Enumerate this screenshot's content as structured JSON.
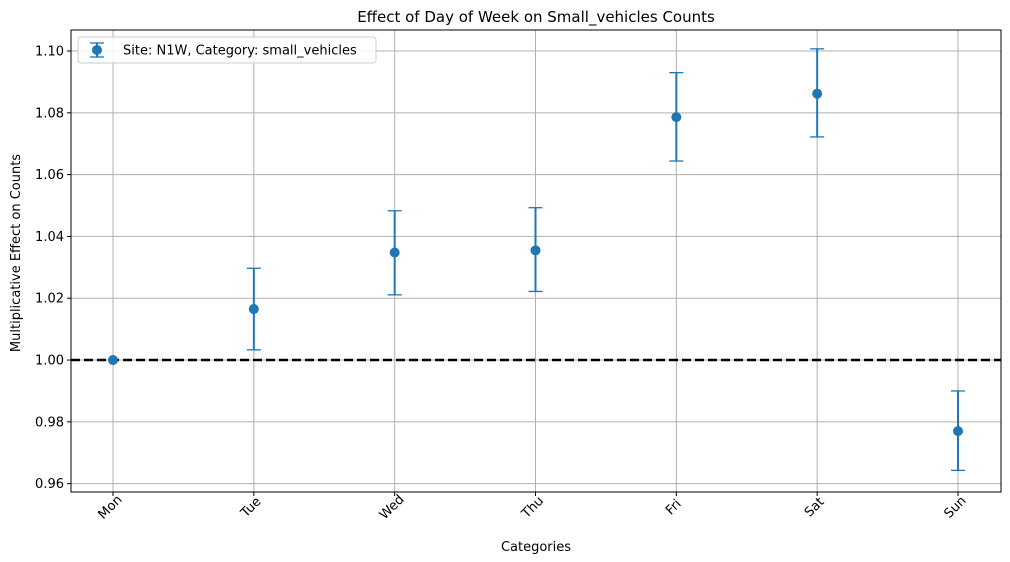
{
  "chart_data": {
    "type": "scatter",
    "title": "Effect of Day of Week on Small_vehicles Counts",
    "xlabel": "Categories",
    "ylabel": "Multiplicative Effect on Counts",
    "categories": [
      "Mon",
      "Tue",
      "Wed",
      "Thu",
      "Fri",
      "Sat",
      "Sun"
    ],
    "series": [
      {
        "name": "Site: N1W, Category: small_vehicles",
        "color": "#1f77b4",
        "values": [
          1.0,
          1.0165,
          1.0348,
          1.0355,
          1.0786,
          1.0862,
          0.977
        ],
        "lower": [
          1.0,
          1.0033,
          1.0211,
          1.0222,
          1.0644,
          1.0722,
          0.9643
        ],
        "upper": [
          1.0,
          1.0297,
          1.0483,
          1.0493,
          1.093,
          1.1007,
          0.99
        ]
      }
    ],
    "reference_line": {
      "value": 1.0,
      "style": "dashed",
      "color": "#000000"
    },
    "ylim": [
      0.9573,
      1.1068
    ],
    "yticks": [
      "0.96",
      "0.98",
      "1.00",
      "1.02",
      "1.04",
      "1.06",
      "1.08",
      "1.10"
    ],
    "grid": true,
    "legend_position": "upper-left"
  }
}
